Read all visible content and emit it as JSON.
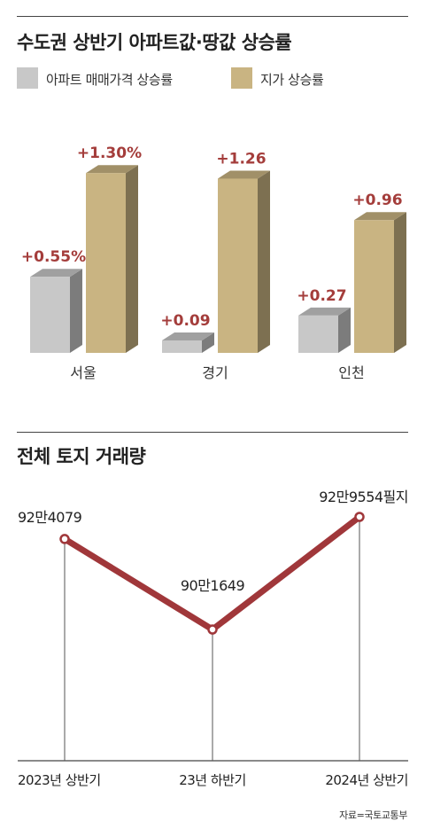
{
  "chart_data": [
    {
      "type": "bar",
      "title": "수도권 상반기 아파트값·땅값 상승률",
      "categories": [
        "서울",
        "경기",
        "인천"
      ],
      "series": [
        {
          "name": "아파트 매매가격 상승률",
          "values": [
            0.55,
            0.09,
            0.27
          ],
          "labels": [
            "+0.55%",
            "+0.09",
            "+0.27"
          ],
          "color": "#c8c8c8"
        },
        {
          "name": "지가 상승률",
          "values": [
            1.3,
            1.26,
            0.96
          ],
          "labels": [
            "+1.30%",
            "+1.26",
            "+0.96"
          ],
          "color": "#c9b482"
        }
      ],
      "label_color": "#a43d3b",
      "grid": false,
      "legend": "top-left"
    },
    {
      "type": "line",
      "title": "전체 토지 거래량",
      "categories": [
        "2023년 상반기",
        "23년 하반기",
        "2024년 상반기"
      ],
      "series": [
        {
          "values": [
            924079,
            901649,
            929554
          ],
          "labels": [
            "92만4079",
            "90만1649",
            "92만9554필지"
          ],
          "color": "#a0373a"
        }
      ],
      "grid": false
    }
  ],
  "source": "자료=국토교통부"
}
